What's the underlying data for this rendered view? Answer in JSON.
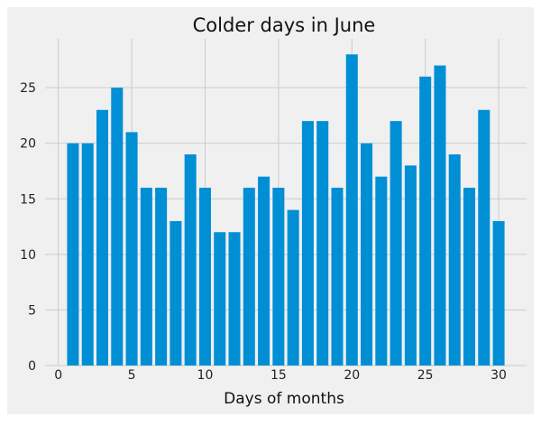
{
  "chart_data": {
    "type": "bar",
    "title": "Colder days in June",
    "xlabel": "Days of months",
    "ylabel": "",
    "x": [
      1,
      2,
      3,
      4,
      5,
      6,
      7,
      8,
      9,
      10,
      11,
      12,
      13,
      14,
      15,
      16,
      17,
      18,
      19,
      20,
      21,
      22,
      23,
      24,
      25,
      26,
      27,
      28,
      29,
      30
    ],
    "values": [
      20,
      20,
      23,
      25,
      21,
      16,
      16,
      13,
      19,
      16,
      12,
      12,
      16,
      17,
      16,
      14,
      22,
      22,
      16,
      28,
      20,
      17,
      22,
      18,
      26,
      27,
      19,
      16,
      23,
      13
    ],
    "xlim": [
      -0.9,
      31.9
    ],
    "ylim": [
      0,
      29.4
    ],
    "xticks": [
      0,
      5,
      10,
      15,
      20,
      25,
      30
    ],
    "yticks": [
      0,
      5,
      10,
      15,
      20,
      25
    ],
    "grid": true,
    "colors": {
      "bar": "#008fd5",
      "figure_bg": "#f0f0f0",
      "grid": "#cbcbcb"
    }
  }
}
